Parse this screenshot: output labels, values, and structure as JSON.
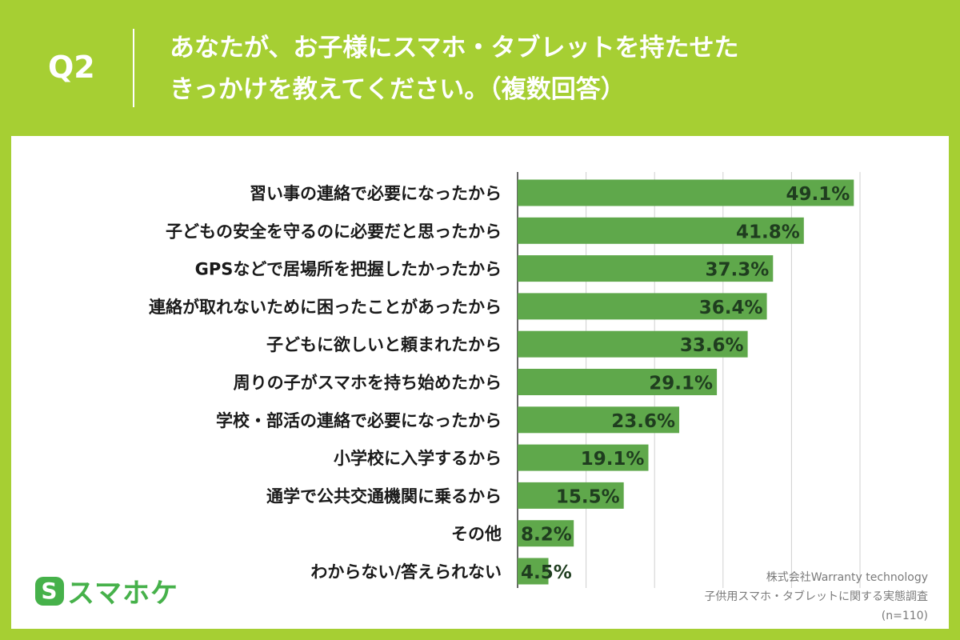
{
  "header": {
    "q_label": "Q2",
    "question_line1": "あなたが、お子様にスマホ・タブレットを持たせた",
    "question_line2": "きっかけを教えてください。（複数回答）"
  },
  "brand": {
    "mark": "S",
    "name": "スマホケ"
  },
  "source": {
    "company": "株式会社Warranty technology",
    "survey": "子供用スマホ・タブレットに関する実態調査",
    "n": "(n=110)"
  },
  "colors": {
    "background": "#a6cf33",
    "bar": "#5fa84b",
    "grid": "#d0d0d0",
    "label": "#1a1a1a",
    "value_label": "#1f3d1f",
    "brand": "#46b14a"
  },
  "chart_data": {
    "type": "bar",
    "orientation": "horizontal",
    "categories": [
      "習い事の連絡で必要になったから",
      "子どもの安全を守るのに必要だと思ったから",
      "GPSなどで居場所を把握したかったから",
      "連絡が取れないために困ったことがあったから",
      "子どもに欲しいと頼まれたから",
      "周りの子がスマホを持ち始めたから",
      "学校・部活の連絡で必要になったから",
      "小学校に入学するから",
      "通学で公共交通機関に乗るから",
      "その他",
      "わからない/答えられない"
    ],
    "values": [
      49.1,
      41.8,
      37.3,
      36.4,
      33.6,
      29.1,
      23.6,
      19.1,
      15.5,
      8.2,
      4.5
    ],
    "value_labels": [
      "49.1%",
      "41.8%",
      "37.3%",
      "36.4%",
      "33.6%",
      "29.1%",
      "23.6%",
      "19.1%",
      "15.5%",
      "8.2%",
      "4.5%"
    ],
    "xlim": [
      0,
      50
    ],
    "grid": true,
    "unit": "%"
  }
}
